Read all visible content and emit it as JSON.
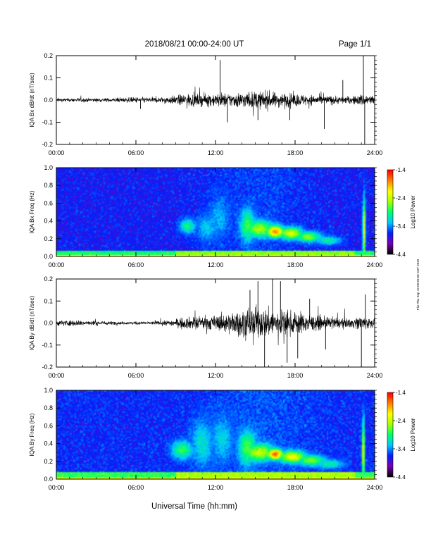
{
  "header": {
    "date_range": "2018/08/21  00:00-24:00 UT",
    "page": "Page 1/1"
  },
  "footer": {
    "x_axis_title": "Universal Time (hh:mm)"
  },
  "side_note": "Plot Thu Sep 19 09:25:58 CDT 2019",
  "chart_data": [
    {
      "type": "line",
      "ylabel": "IQA Bx dB/dt (nT/sec)",
      "ylim": [
        -0.2,
        0.2
      ],
      "y_ticks": [
        "0.2",
        "0.1",
        "0.0",
        "-0.1",
        "-0.2"
      ],
      "x_ticks": [
        "00:00",
        "06:00",
        "12:00",
        "18:00",
        "24:00"
      ],
      "xlim": [
        0,
        24
      ],
      "x_units": "hours UT",
      "envelope": {
        "x": [
          0,
          1,
          2,
          3,
          4,
          5,
          6,
          7,
          8,
          9,
          9.5,
          10,
          10.5,
          11,
          11.5,
          12,
          12.5,
          13,
          13.5,
          14,
          14.5,
          15,
          15.5,
          16,
          16.5,
          17,
          17.5,
          18,
          18.5,
          19,
          19.5,
          20,
          20.5,
          21,
          21.5,
          22,
          22.5,
          23,
          23.5,
          24
        ],
        "amplitude": [
          0.012,
          0.012,
          0.014,
          0.012,
          0.013,
          0.015,
          0.02,
          0.018,
          0.02,
          0.03,
          0.04,
          0.045,
          0.04,
          0.04,
          0.045,
          0.045,
          0.05,
          0.045,
          0.05,
          0.055,
          0.055,
          0.06,
          0.055,
          0.06,
          0.05,
          0.05,
          0.045,
          0.045,
          0.04,
          0.035,
          0.035,
          0.03,
          0.03,
          0.03,
          0.025,
          0.025,
          0.03,
          0.04,
          0.04,
          0.03
        ]
      },
      "spikes": [
        {
          "x": 6.35,
          "y": -0.04
        },
        {
          "x": 12.35,
          "y": 0.18
        },
        {
          "x": 12.9,
          "y": -0.1
        },
        {
          "x": 15.2,
          "y": -0.09
        },
        {
          "x": 17.6,
          "y": -0.09
        },
        {
          "x": 20.2,
          "y": -0.13
        },
        {
          "x": 21.6,
          "y": 0.09
        },
        {
          "x": 23.15,
          "y": 0.2
        },
        {
          "x": 23.25,
          "y": -0.2
        }
      ]
    },
    {
      "type": "heatmap",
      "ylabel": "IQA Bx Freq (Hz)",
      "ylim": [
        0.0,
        1.0
      ],
      "y_ticks": [
        "1.0",
        "0.8",
        "0.6",
        "0.4",
        "0.2",
        "0.0"
      ],
      "x_ticks": [
        "00:00",
        "06:00",
        "12:00",
        "18:00",
        "24:00"
      ],
      "xlim": [
        0,
        24
      ],
      "colorbar": {
        "label": "Log10 Power",
        "ticks": [
          "-1.4",
          "-2.4",
          "-3.4",
          "-4.4"
        ],
        "range": [
          -4.4,
          -1.4
        ],
        "colors": [
          "#000000",
          "#7a00b0",
          "#0020ff",
          "#00c8ff",
          "#00ff70",
          "#a8ff00",
          "#ffff00",
          "#ff8000",
          "#ff0000"
        ]
      },
      "background_log_power": -3.7,
      "features": [
        {
          "t": 9.9,
          "f": 0.34,
          "dt": 0.6,
          "df": 0.08,
          "level": -2.9
        },
        {
          "t": 11.3,
          "f": 0.32,
          "dt": 0.8,
          "df": 0.15,
          "level": -3.2
        },
        {
          "t": 12.3,
          "f": 0.45,
          "dt": 0.8,
          "df": 0.25,
          "level": -3.3
        },
        {
          "t": 14.4,
          "f": 0.35,
          "dt": 0.6,
          "df": 0.2,
          "level": -2.8
        },
        {
          "t": 15.3,
          "f": 0.31,
          "dt": 1.2,
          "df": 0.1,
          "level": -2.5
        },
        {
          "t": 16.5,
          "f": 0.28,
          "dt": 0.7,
          "df": 0.07,
          "level": -1.8
        },
        {
          "t": 17.7,
          "f": 0.26,
          "dt": 0.9,
          "df": 0.07,
          "level": -2.3
        },
        {
          "t": 19.0,
          "f": 0.22,
          "dt": 1.0,
          "df": 0.06,
          "level": -2.6
        },
        {
          "t": 20.5,
          "f": 0.18,
          "dt": 0.9,
          "df": 0.05,
          "level": -3.0
        },
        {
          "t": 23.2,
          "f": 0.3,
          "dt": 0.1,
          "df": 0.35,
          "level": -2.2
        }
      ],
      "low_freq_band": {
        "f_max": 0.07,
        "level": -2.6
      }
    },
    {
      "type": "line",
      "ylabel": "IQA By dB/dt (nT/sec)",
      "ylim": [
        -0.2,
        0.2
      ],
      "y_ticks": [
        "0.2",
        "0.1",
        "0.0",
        "-0.1",
        "-0.2"
      ],
      "x_ticks": [
        "00:00",
        "06:00",
        "12:00",
        "18:00",
        "24:00"
      ],
      "xlim": [
        0,
        24
      ],
      "x_units": "hours UT",
      "envelope": {
        "x": [
          0,
          1,
          2,
          3,
          4,
          5,
          6,
          7,
          8,
          9,
          9.5,
          10,
          10.5,
          11,
          11.5,
          12,
          12.5,
          13,
          13.5,
          14,
          14.5,
          15,
          15.5,
          16,
          16.5,
          17,
          17.5,
          18,
          18.5,
          19,
          19.5,
          20,
          20.5,
          21,
          21.5,
          22,
          22.5,
          23,
          23.5,
          24
        ],
        "amplitude": [
          0.02,
          0.02,
          0.018,
          0.015,
          0.012,
          0.01,
          0.01,
          0.01,
          0.015,
          0.025,
          0.035,
          0.04,
          0.045,
          0.045,
          0.05,
          0.05,
          0.06,
          0.07,
          0.08,
          0.09,
          0.1,
          0.11,
          0.1,
          0.1,
          0.09,
          0.09,
          0.08,
          0.08,
          0.07,
          0.06,
          0.05,
          0.045,
          0.04,
          0.04,
          0.035,
          0.03,
          0.035,
          0.05,
          0.04,
          0.03
        ]
      },
      "spikes": [
        {
          "x": 14.6,
          "y": 0.15
        },
        {
          "x": 15.2,
          "y": 0.19
        },
        {
          "x": 15.7,
          "y": -0.2
        },
        {
          "x": 16.3,
          "y": 0.2
        },
        {
          "x": 16.9,
          "y": 0.19
        },
        {
          "x": 17.4,
          "y": -0.18
        },
        {
          "x": 18.2,
          "y": -0.16
        },
        {
          "x": 19.1,
          "y": 0.11
        },
        {
          "x": 20.3,
          "y": -0.12
        },
        {
          "x": 23.0,
          "y": -0.2
        },
        {
          "x": 23.3,
          "y": 0.13
        }
      ]
    },
    {
      "type": "heatmap",
      "ylabel": "IQA By Freq (Hz)",
      "ylim": [
        0.0,
        1.0
      ],
      "y_ticks": [
        "1.0",
        "0.8",
        "0.6",
        "0.4",
        "0.2",
        "0.0"
      ],
      "x_ticks": [
        "00:00",
        "06:00",
        "12:00",
        "18:00",
        "24:00"
      ],
      "xlim": [
        0,
        24
      ],
      "colorbar": {
        "label": "Log10 Power",
        "ticks": [
          "-1.4",
          "-2.4",
          "-3.4",
          "-4.4"
        ],
        "range": [
          -4.4,
          -1.4
        ],
        "colors": [
          "#000000",
          "#7a00b0",
          "#0020ff",
          "#00c8ff",
          "#00ff70",
          "#a8ff00",
          "#ffff00",
          "#ff8000",
          "#ff0000"
        ]
      },
      "background_log_power": -3.65,
      "features": [
        {
          "t": 9.5,
          "f": 0.33,
          "dt": 0.8,
          "df": 0.1,
          "level": -2.8
        },
        {
          "t": 11.0,
          "f": 0.4,
          "dt": 0.8,
          "df": 0.25,
          "level": -3.1
        },
        {
          "t": 12.5,
          "f": 0.45,
          "dt": 0.8,
          "df": 0.25,
          "level": -3.2
        },
        {
          "t": 14.4,
          "f": 0.35,
          "dt": 0.7,
          "df": 0.2,
          "level": -2.7
        },
        {
          "t": 15.3,
          "f": 0.3,
          "dt": 1.2,
          "df": 0.1,
          "level": -2.4
        },
        {
          "t": 16.5,
          "f": 0.28,
          "dt": 0.6,
          "df": 0.06,
          "level": -1.6
        },
        {
          "t": 17.8,
          "f": 0.25,
          "dt": 1.0,
          "df": 0.07,
          "level": -2.2
        },
        {
          "t": 19.2,
          "f": 0.21,
          "dt": 1.0,
          "df": 0.06,
          "level": -2.6
        },
        {
          "t": 20.6,
          "f": 0.17,
          "dt": 1.0,
          "df": 0.05,
          "level": -3.0
        },
        {
          "t": 23.15,
          "f": 0.3,
          "dt": 0.1,
          "df": 0.35,
          "level": -2.2
        }
      ],
      "low_freq_band": {
        "f_max": 0.08,
        "level": -2.5
      }
    }
  ]
}
